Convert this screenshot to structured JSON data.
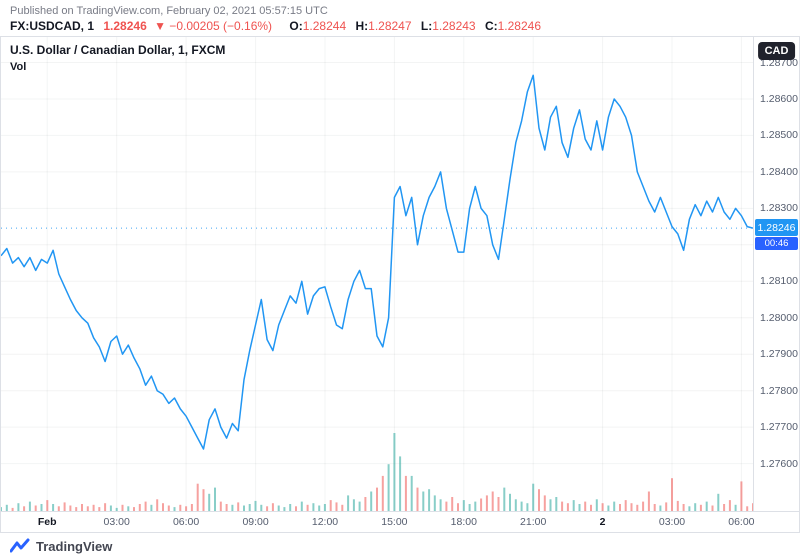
{
  "header": {
    "published": "Published on TradingView.com, February 02, 2021 05:57:15 UTC",
    "symbol": "FX:USDCAD, 1",
    "price": "1.28246",
    "change": "▼ −0.00205 (−0.16%)",
    "ohlc": [
      {
        "label": "O:",
        "value": "1.28244"
      },
      {
        "label": "H:",
        "value": "1.28247"
      },
      {
        "label": "L:",
        "value": "1.28243"
      },
      {
        "label": "C:",
        "value": "1.28246"
      }
    ]
  },
  "chart": {
    "legend": "U.S. Dollar / Canadian Dollar, 1, FXCM",
    "vol_label": "Vol",
    "currency_button": "CAD",
    "price_badge": "1.28246",
    "countdown": "00:46"
  },
  "chart_data": {
    "type": "line",
    "title": "U.S. Dollar / Canadian Dollar, 1, FXCM",
    "symbol": "FX:USDCAD",
    "interval": "1",
    "last_price": 1.28246,
    "ylim": [
      1.2747,
      1.2877
    ],
    "y_ticks": [
      "1.28700",
      "1.28600",
      "1.28500",
      "1.28400",
      "1.28300",
      "1.28200",
      "1.28100",
      "1.28000",
      "1.27900",
      "1.27800",
      "1.27700",
      "1.27600"
    ],
    "x_ticks": [
      {
        "label": "Feb",
        "pos": 0.0615,
        "major": true
      },
      {
        "label": "03:00",
        "pos": 0.1538,
        "major": false
      },
      {
        "label": "06:00",
        "pos": 0.2462,
        "major": false
      },
      {
        "label": "09:00",
        "pos": 0.3385,
        "major": false
      },
      {
        "label": "12:00",
        "pos": 0.4308,
        "major": false
      },
      {
        "label": "15:00",
        "pos": 0.5231,
        "major": false
      },
      {
        "label": "18:00",
        "pos": 0.6154,
        "major": false
      },
      {
        "label": "21:00",
        "pos": 0.7077,
        "major": false
      },
      {
        "label": "2",
        "pos": 0.8,
        "major": true
      },
      {
        "label": "03:00",
        "pos": 0.8923,
        "major": false
      },
      {
        "label": "06:00",
        "pos": 0.9846,
        "major": false
      }
    ],
    "colors": {
      "line": "#2196f3",
      "vol_up": "#26a69a",
      "vol_down": "#ef5350",
      "badge": "#2196f3",
      "countdown_badge": "#2962ff",
      "red": "#ef5350"
    },
    "prices": [
      1.2817,
      1.2819,
      1.2815,
      1.28165,
      1.2814,
      1.28165,
      1.2813,
      1.2816,
      1.2815,
      1.28185,
      1.2812,
      1.28085,
      1.2805,
      1.2802,
      1.28,
      1.27985,
      1.27945,
      1.2792,
      1.2788,
      1.27935,
      1.2795,
      1.279,
      1.27925,
      1.2789,
      1.2786,
      1.27815,
      1.2784,
      1.278,
      1.2779,
      1.27765,
      1.2778,
      1.2775,
      1.2773,
      1.277,
      1.2767,
      1.2764,
      1.2772,
      1.2775,
      1.277,
      1.2767,
      1.2771,
      1.2769,
      1.2783,
      1.2791,
      1.2798,
      1.2805,
      1.2794,
      1.2791,
      1.2798,
      1.2802,
      1.2806,
      1.2804,
      1.281,
      1.2801,
      1.2806,
      1.2808,
      1.28085,
      1.2803,
      1.2798,
      1.2797,
      1.2805,
      1.281,
      1.2813,
      1.2808,
      1.2808,
      1.2795,
      1.2792,
      1.28,
      1.2833,
      1.2836,
      1.2828,
      1.2833,
      1.282,
      1.2828,
      1.2833,
      1.2836,
      1.284,
      1.283,
      1.2824,
      1.2818,
      1.2818,
      1.283,
      1.2836,
      1.283,
      1.2828,
      1.282,
      1.2816,
      1.2827,
      1.2838,
      1.2848,
      1.2854,
      1.2862,
      1.28665,
      1.2852,
      1.2846,
      1.2855,
      1.2858,
      1.2848,
      1.2844,
      1.2852,
      1.2857,
      1.2849,
      1.2846,
      1.2854,
      1.2846,
      1.2855,
      1.286,
      1.2858,
      1.2855,
      1.285,
      1.284,
      1.2836,
      1.2832,
      1.2829,
      1.2833,
      1.2829,
      1.2825,
      1.2823,
      1.28185,
      1.2827,
      1.2831,
      1.2828,
      1.2832,
      1.2829,
      1.2833,
      1.2829,
      1.2827,
      1.283,
      1.2828,
      1.2825,
      1.28246
    ],
    "volume": [
      5,
      8,
      4,
      10,
      6,
      12,
      7,
      9,
      14,
      9,
      6,
      11,
      7,
      5,
      9,
      6,
      8,
      5,
      10,
      7,
      4,
      8,
      6,
      5,
      9,
      12,
      8,
      15,
      10,
      7,
      5,
      8,
      6,
      9,
      35,
      28,
      22,
      30,
      12,
      9,
      8,
      11,
      7,
      9,
      13,
      8,
      6,
      10,
      7,
      5,
      9,
      6,
      12,
      8,
      10,
      7,
      9,
      14,
      11,
      8,
      20,
      15,
      12,
      18,
      25,
      30,
      45,
      60,
      100,
      70,
      45,
      45,
      30,
      25,
      28,
      20,
      15,
      12,
      18,
      10,
      14,
      9,
      12,
      16,
      20,
      25,
      18,
      30,
      22,
      15,
      12,
      10,
      35,
      28,
      20,
      15,
      18,
      12,
      10,
      14,
      9,
      12,
      8,
      15,
      10,
      7,
      12,
      9,
      14,
      10,
      8,
      12,
      25,
      9,
      7,
      11,
      42,
      13,
      9,
      6,
      10,
      8,
      12,
      7,
      22,
      9,
      14,
      8,
      38,
      6,
      10
    ]
  },
  "footer": {
    "brand": "TradingView"
  }
}
